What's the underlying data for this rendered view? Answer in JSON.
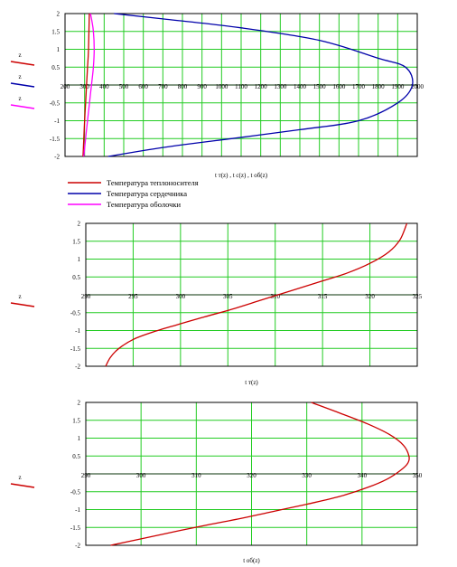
{
  "chart_data": [
    {
      "type": "line",
      "xlabel": "t т(z) , t c(z) , t об(z)",
      "ylabel": "z",
      "xlim": [
        200,
        2000
      ],
      "ylim": [
        -2,
        2
      ],
      "xticks": [
        200,
        300,
        400,
        500,
        600,
        700,
        800,
        900,
        1000,
        1100,
        1200,
        1300,
        1400,
        1500,
        1600,
        1700,
        1800,
        1900,
        2000
      ],
      "yticks": [
        -2,
        -1.5,
        -1,
        -0.5,
        0,
        0.5,
        1,
        1.5,
        2
      ],
      "grid": true,
      "legend": "bottom-left",
      "series": [
        {
          "name": "Температура теплоносителя",
          "color": "#cc0000",
          "x": [
            292,
            296,
            300,
            305,
            310,
            315,
            320,
            324
          ],
          "y": [
            -2,
            -1.5,
            -1,
            -0.5,
            0,
            0.5,
            1,
            2
          ]
        },
        {
          "name": "Температура сердечника",
          "color": "#0000aa",
          "x": [
            420,
            700,
            1050,
            1400,
            1700,
            1900,
            1975,
            1940,
            1800,
            1500,
            1100,
            700,
            450
          ],
          "y": [
            -2,
            -1.75,
            -1.5,
            -1.25,
            -1,
            -0.5,
            0,
            0.5,
            0.75,
            1.25,
            1.6,
            1.85,
            2
          ]
        },
        {
          "name": "Температура оболочки",
          "color": "#ff00ff",
          "x": [
            296,
            305,
            315,
            325,
            335,
            345,
            349,
            345,
            337,
            330
          ],
          "y": [
            -2,
            -1.5,
            -1,
            -0.5,
            0,
            0.5,
            1,
            1.5,
            1.8,
            2
          ]
        }
      ]
    },
    {
      "type": "line",
      "xlabel": "t т(z)",
      "ylabel": "z",
      "xlim": [
        290,
        325
      ],
      "ylim": [
        -2,
        2
      ],
      "xticks": [
        290,
        295,
        300,
        305,
        310,
        315,
        320,
        325
      ],
      "yticks": [
        -2,
        -1.5,
        -1,
        -0.5,
        0,
        0.5,
        1,
        1.5,
        2
      ],
      "grid": true,
      "series": [
        {
          "name": "",
          "color": "#cc0000",
          "x": [
            292.1,
            292.6,
            293.5,
            295,
            297,
            299.5,
            302.5,
            305.5,
            308.5,
            311.5,
            314.5,
            317.5,
            320,
            322,
            323.2,
            323.9
          ],
          "y": [
            -2,
            -1.75,
            -1.5,
            -1.25,
            -1.05,
            -0.85,
            -0.62,
            -0.4,
            -0.15,
            0.1,
            0.35,
            0.6,
            0.88,
            1.2,
            1.55,
            2
          ]
        }
      ]
    },
    {
      "type": "line",
      "xlabel": "t об(z)",
      "ylabel": "z",
      "xlim": [
        290,
        350
      ],
      "ylim": [
        -2,
        2
      ],
      "xticks": [
        290,
        300,
        310,
        320,
        330,
        340,
        350
      ],
      "yticks": [
        -2,
        -1.5,
        -1,
        -0.5,
        0,
        0.5,
        1,
        1.5,
        2
      ],
      "grid": true,
      "series": [
        {
          "name": "",
          "color": "#cc0000",
          "x": [
            294.5,
            300,
            306,
            312,
            318,
            324,
            330,
            336,
            341,
            344.5,
            347,
            348.3,
            348.5,
            347.5,
            345,
            341,
            336,
            330.8
          ],
          "y": [
            -2,
            -1.82,
            -1.62,
            -1.43,
            -1.25,
            -1.05,
            -0.85,
            -0.63,
            -0.38,
            -0.15,
            0.1,
            0.3,
            0.5,
            0.8,
            1.1,
            1.4,
            1.7,
            2
          ]
        }
      ]
    }
  ]
}
